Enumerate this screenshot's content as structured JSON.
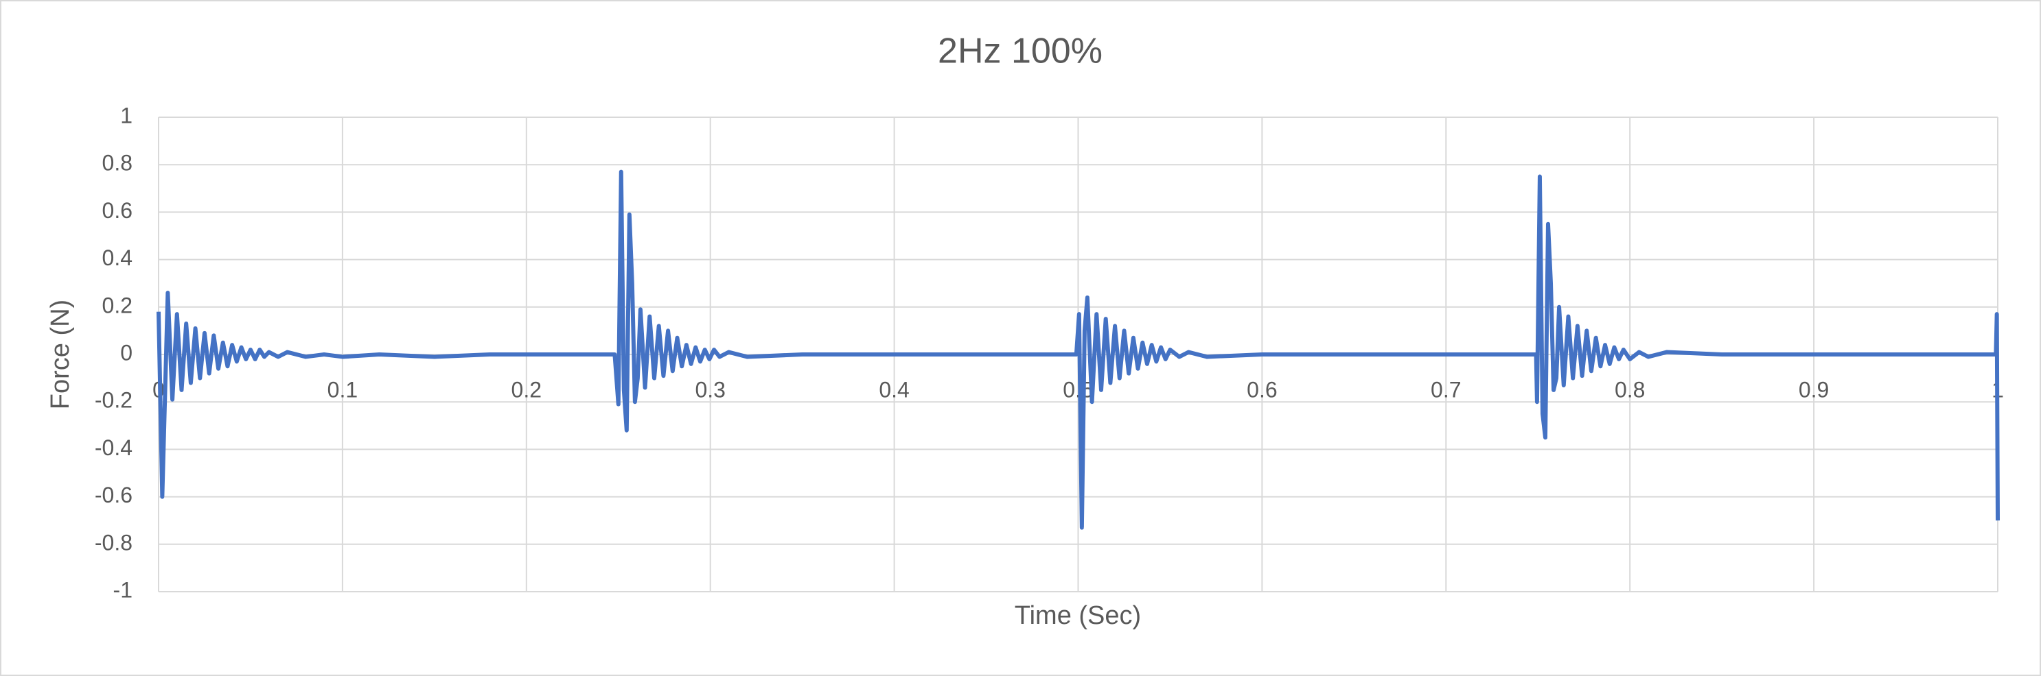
{
  "chart_data": {
    "type": "line",
    "title": "2Hz 100%",
    "x_label": "Time (Sec)",
    "y_label": "Force (N)",
    "xlim": [
      0,
      1
    ],
    "xticks": [
      0,
      0.1,
      0.2,
      0.3,
      0.4,
      0.5,
      0.6,
      0.7,
      0.8,
      0.9,
      1
    ],
    "ylim": [
      -1,
      1
    ],
    "yticks": [
      -1,
      -0.8,
      -0.6,
      -0.4,
      -0.2,
      0,
      0.2,
      0.4,
      0.6,
      0.8,
      1
    ],
    "grid": true,
    "series": [
      {
        "name": "Force",
        "color": "#4472c4",
        "x": [
          0,
          0.002,
          0.005,
          0.0075,
          0.01,
          0.0125,
          0.015,
          0.0175,
          0.02,
          0.0225,
          0.025,
          0.0275,
          0.03,
          0.0325,
          0.035,
          0.0375,
          0.04,
          0.0425,
          0.045,
          0.0475,
          0.05,
          0.0525,
          0.055,
          0.0575,
          0.06,
          0.065,
          0.07,
          0.08,
          0.09,
          0.1,
          0.12,
          0.15,
          0.18,
          0.248,
          0.25,
          0.2515,
          0.253,
          0.2545,
          0.256,
          0.2575,
          0.259,
          0.2605,
          0.262,
          0.2645,
          0.267,
          0.2695,
          0.272,
          0.2745,
          0.277,
          0.2795,
          0.282,
          0.2845,
          0.287,
          0.2895,
          0.292,
          0.2945,
          0.297,
          0.2995,
          0.302,
          0.305,
          0.31,
          0.32,
          0.35,
          0.499,
          0.5005,
          0.502,
          0.5035,
          0.505,
          0.5075,
          0.51,
          0.5125,
          0.515,
          0.5175,
          0.52,
          0.5225,
          0.525,
          0.5275,
          0.53,
          0.5325,
          0.535,
          0.5375,
          0.54,
          0.5425,
          0.545,
          0.5475,
          0.55,
          0.555,
          0.56,
          0.57,
          0.6,
          0.749,
          0.7495,
          0.751,
          0.7525,
          0.754,
          0.7555,
          0.757,
          0.7585,
          0.76,
          0.7615,
          0.764,
          0.7665,
          0.769,
          0.7715,
          0.774,
          0.7765,
          0.779,
          0.7815,
          0.784,
          0.7865,
          0.789,
          0.7915,
          0.794,
          0.7965,
          0.8,
          0.805,
          0.81,
          0.82,
          0.85,
          0.999,
          0.9995,
          1
        ],
        "values": [
          0.18,
          -0.6,
          0.26,
          -0.19,
          0.17,
          -0.15,
          0.13,
          -0.12,
          0.11,
          -0.1,
          0.09,
          -0.08,
          0.08,
          -0.06,
          0.05,
          -0.05,
          0.04,
          -0.03,
          0.03,
          -0.02,
          0.02,
          -0.02,
          0.02,
          -0.01,
          0.01,
          -0.01,
          0.01,
          -0.01,
          0,
          -0.01,
          0,
          -0.01,
          0,
          0,
          -0.21,
          0.77,
          -0.15,
          -0.32,
          0.59,
          0.3,
          -0.2,
          -0.1,
          0.19,
          -0.14,
          0.16,
          -0.1,
          0.12,
          -0.09,
          0.1,
          -0.07,
          0.07,
          -0.05,
          0.04,
          -0.04,
          0.03,
          -0.03,
          0.02,
          -0.02,
          0.02,
          -0.01,
          0.01,
          -0.01,
          0,
          0,
          0.17,
          -0.73,
          0.1,
          0.24,
          -0.2,
          0.17,
          -0.15,
          0.15,
          -0.12,
          0.12,
          -0.1,
          0.1,
          -0.08,
          0.07,
          -0.06,
          0.05,
          -0.04,
          0.04,
          -0.03,
          0.03,
          -0.02,
          0.02,
          -0.01,
          0.01,
          -0.01,
          0,
          0,
          -0.2,
          0.75,
          -0.25,
          -0.35,
          0.55,
          0.3,
          -0.15,
          -0.1,
          0.2,
          -0.13,
          0.16,
          -0.1,
          0.12,
          -0.09,
          0.1,
          -0.07,
          0.07,
          -0.05,
          0.04,
          -0.04,
          0.03,
          -0.02,
          0.02,
          -0.02,
          0.01,
          -0.01,
          0.01,
          0,
          0,
          0.17,
          -0.7
        ]
      }
    ]
  }
}
